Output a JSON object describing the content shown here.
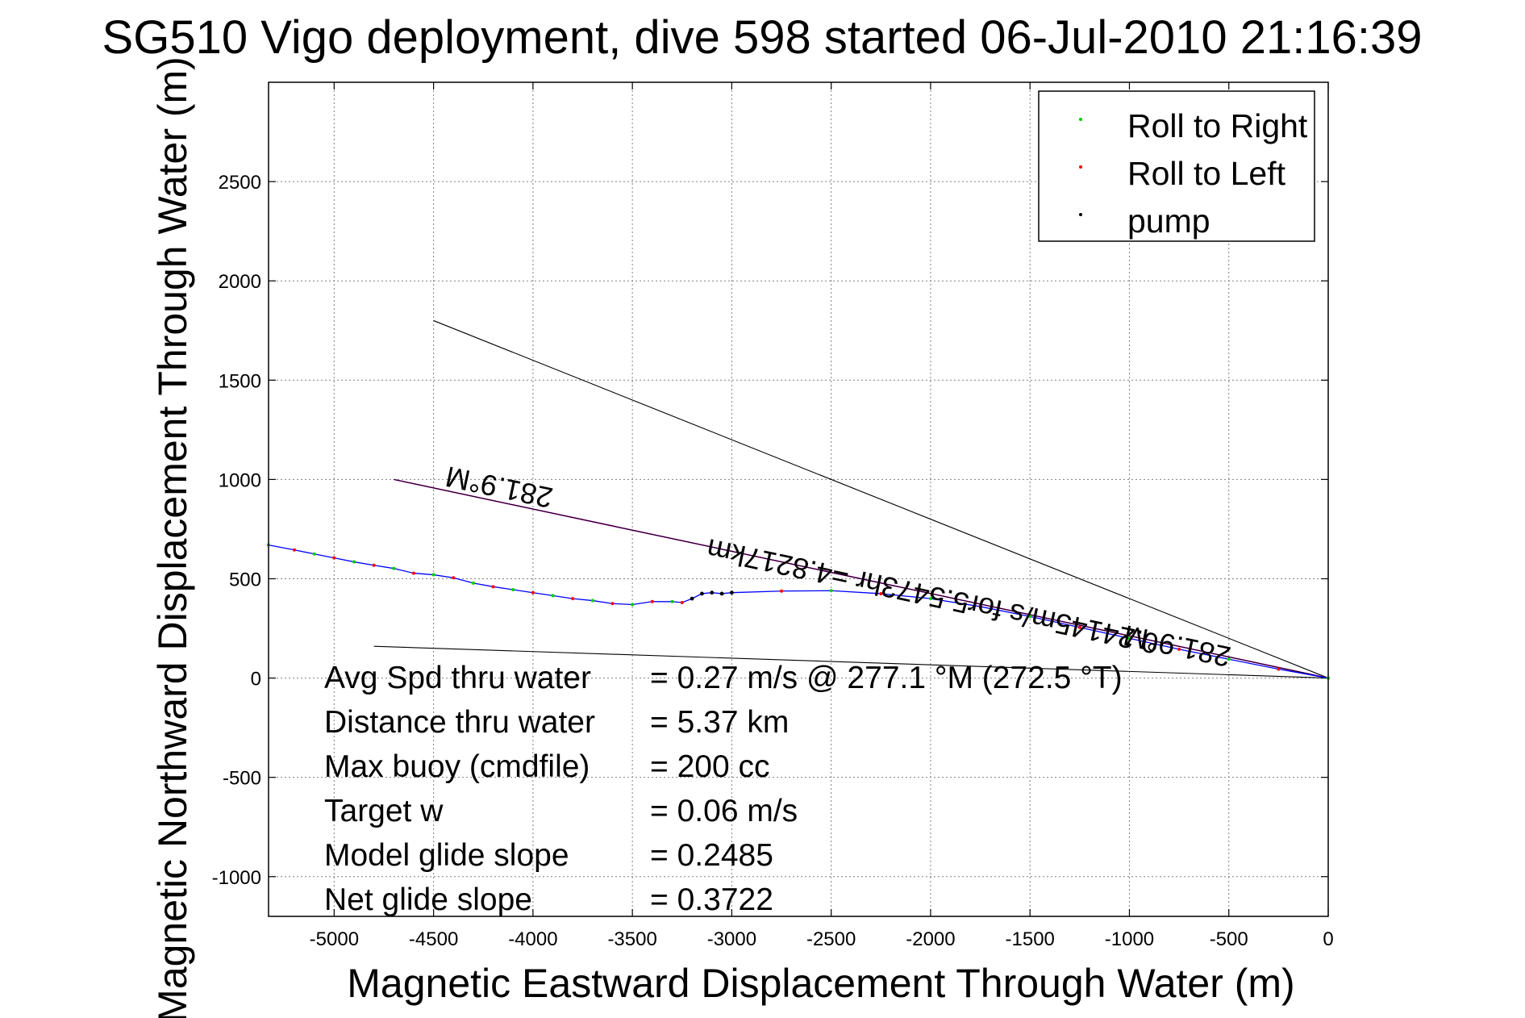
{
  "chart_data": {
    "type": "scatter",
    "title": "SG510 Vigo deployment, dive 598 started 06-Jul-2010 21:16:39",
    "xlabel": "Magnetic Eastward Displacement Through Water (m)",
    "ylabel": "Magnetic Northward Displacement Through Water (m)",
    "xlim": [
      -5330,
      0
    ],
    "ylim": [
      -1200,
      3000
    ],
    "x_ticks": [
      -5000,
      -4500,
      -4000,
      -3500,
      -3000,
      -2500,
      -2000,
      -1500,
      -1000,
      -500,
      0
    ],
    "y_ticks": [
      -1000,
      -500,
      0,
      500,
      1000,
      1500,
      2000,
      2500
    ],
    "grid": true,
    "legend_position": "top-right",
    "series": [
      {
        "name": "Roll to Right",
        "color": "#00cc00",
        "marker": "dot"
      },
      {
        "name": "Roll to Left",
        "color": "#ff0000",
        "marker": "dot"
      },
      {
        "name": "pump",
        "color": "#000000",
        "marker": "dot"
      }
    ],
    "track": {
      "color": "#0000ff",
      "x": [
        0,
        -250,
        -500,
        -750,
        -1000,
        -1250,
        -1500,
        -1750,
        -2000,
        -2250,
        -2500,
        -2750,
        -3000,
        -3050,
        -3100,
        -3150,
        -3200,
        -3250,
        -3300,
        -3400,
        -3500,
        -3600,
        -3700,
        -3800,
        -3900,
        -4000,
        -4100,
        -4200,
        -4300,
        -4400,
        -4500,
        -4600,
        -4700,
        -4800,
        -4900,
        -5000,
        -5100,
        -5200,
        -5330
      ],
      "y": [
        0,
        45,
        95,
        145,
        200,
        255,
        310,
        360,
        400,
        425,
        440,
        438,
        430,
        425,
        430,
        425,
        400,
        380,
        385,
        385,
        370,
        375,
        390,
        400,
        415,
        430,
        445,
        460,
        478,
        505,
        520,
        528,
        552,
        568,
        585,
        605,
        625,
        645,
        670
      ]
    },
    "pump_points": {
      "x": [
        -3000,
        -3050,
        -3100,
        -3150,
        -3200
      ],
      "y": [
        430,
        425,
        430,
        425,
        400
      ]
    },
    "lines": [
      {
        "color": "#ff00ff",
        "x": [
          0,
          -4700
        ],
        "y": [
          0,
          1000
        ]
      },
      {
        "color": "#000000",
        "x": [
          0,
          -4700
        ],
        "y": [
          0,
          1000
        ]
      },
      {
        "color": "#000000",
        "x": [
          0,
          -4500
        ],
        "y": [
          0,
          1800
        ]
      },
      {
        "color": "#000000",
        "x": [
          0,
          -4800
        ],
        "y": [
          0,
          160
        ]
      }
    ],
    "annotations": [
      {
        "text": "281.9°M",
        "x": -4160,
        "y": 1010,
        "rotation_deg": 192
      },
      {
        "text": "0.24145m/s for5.5473hr =4.8217km",
        "x": -1980,
        "y": 460,
        "rotation_deg": 192
      },
      {
        "text": "281.9°M",
        "x": -750,
        "y": 210,
        "rotation_deg": 192
      }
    ],
    "stats": [
      {
        "label": "Avg Spd thru water",
        "value": "=  0.27 m/s @ 277.1 °M (272.5 °T)"
      },
      {
        "label": "Distance thru water",
        "value": "=  5.37 km"
      },
      {
        "label": "Max buoy (cmdfile)",
        "value": "= 200 cc"
      },
      {
        "label": "Target w",
        "value": "= 0.06 m/s"
      },
      {
        "label": "Model glide slope",
        "value": "= 0.2485"
      },
      {
        "label": "Net glide slope",
        "value": "= 0.3722"
      }
    ]
  }
}
